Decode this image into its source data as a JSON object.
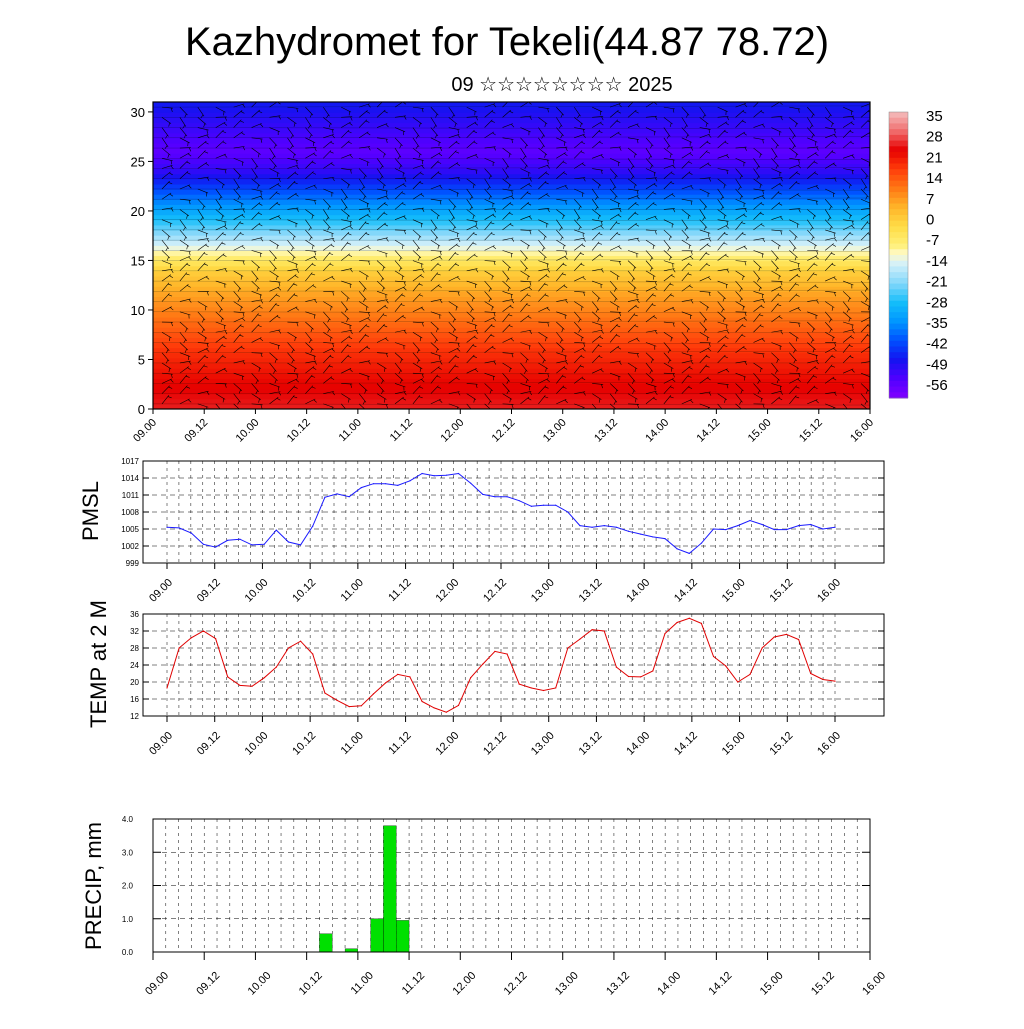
{
  "title": "Kazhydromet for Tekeli(44.87 78.72)",
  "subtitle": "09 ☆☆☆☆☆☆☆☆ 2025",
  "time_ticks": [
    "09.00",
    "09.12",
    "10.00",
    "10.12",
    "11.00",
    "11.12",
    "12.00",
    "12.12",
    "13.00",
    "13.12",
    "14.00",
    "14.12",
    "15.00",
    "15.12",
    "16.00"
  ],
  "colors": {
    "pmsl_line": "#1a1aff",
    "temp_line": "#e00000",
    "precip_bar": "#00e000",
    "frame": "#000000"
  },
  "chart_data": [
    {
      "type": "heatmap",
      "name_hint": "vertical cross-section",
      "x_ticks": [
        "09.00",
        "09.12",
        "10.00",
        "10.12",
        "11.00",
        "11.12",
        "12.00",
        "12.12",
        "13.00",
        "13.12",
        "14.00",
        "14.12",
        "15.00",
        "15.12",
        "16.00"
      ],
      "y_ticks": [
        0,
        5,
        10,
        15,
        20,
        25,
        30
      ],
      "ylim": [
        0,
        31
      ],
      "colorbar_labels": [
        "35",
        "28",
        "21",
        "14",
        "7",
        "0",
        "-7",
        "-14",
        "-21",
        "-28",
        "-35",
        "-42",
        "-49",
        "-56"
      ],
      "colorbar_range": [
        -63,
        42
      ],
      "levels_y": [
        0,
        3,
        6,
        9,
        12,
        14,
        16,
        18,
        20,
        22,
        24,
        26,
        28,
        31
      ],
      "values_by_level": [
        30,
        27,
        22,
        15,
        8,
        2,
        -10,
        -22,
        -32,
        -42,
        -52,
        -58,
        -54,
        -48
      ],
      "has_wind_barbs": true
    },
    {
      "type": "line",
      "ylabel": "PMSL",
      "x_ticks": [
        "09.00",
        "09.12",
        "10.00",
        "10.12",
        "11.00",
        "11.12",
        "12.00",
        "12.12",
        "13.00",
        "13.12",
        "14.00",
        "14.12",
        "15.00",
        "15.12",
        "16.00"
      ],
      "y_ticks": [
        "999",
        "1002",
        "1005",
        "1008",
        "1011",
        "1014",
        "1017"
      ],
      "ylim": [
        999,
        1017
      ],
      "x_step_hours": 3,
      "values": [
        1005.3,
        1005.2,
        1004.3,
        1002.3,
        1001.8,
        1003.0,
        1003.2,
        1002.2,
        1002.3,
        1004.8,
        1002.7,
        1002.2,
        1005.5,
        1010.6,
        1011.2,
        1010.7,
        1012.3,
        1013.0,
        1013.0,
        1012.7,
        1013.5,
        1014.8,
        1014.4,
        1014.5,
        1014.8,
        1013.1,
        1011.1,
        1010.7,
        1010.7,
        1010.0,
        1009.0,
        1009.2,
        1009.2,
        1008.0,
        1005.6,
        1005.3,
        1005.6,
        1005.3,
        1004.6,
        1004.1,
        1003.6,
        1003.3,
        1001.5,
        1000.7,
        1002.5,
        1005.0,
        1004.9,
        1005.6,
        1006.5,
        1005.8,
        1004.9,
        1004.9,
        1005.6,
        1005.8,
        1005.0,
        1005.3
      ]
    },
    {
      "type": "line",
      "ylabel": "TEMP at 2 M",
      "x_ticks": [
        "09.00",
        "09.12",
        "10.00",
        "10.12",
        "11.00",
        "11.12",
        "12.00",
        "12.12",
        "13.00",
        "13.12",
        "14.00",
        "14.12",
        "15.00",
        "15.12",
        "16.00"
      ],
      "y_ticks": [
        "12",
        "16",
        "20",
        "24",
        "28",
        "32",
        "36"
      ],
      "ylim": [
        12,
        36
      ],
      "x_step_hours": 3,
      "values": [
        18.6,
        28.0,
        30.4,
        32.0,
        30.2,
        21.2,
        19.2,
        19.0,
        21.0,
        23.5,
        28.0,
        29.6,
        26.6,
        17.4,
        15.7,
        14.2,
        14.4,
        17.2,
        19.8,
        21.8,
        21.2,
        15.4,
        13.9,
        12.9,
        14.5,
        21.0,
        24.2,
        27.2,
        26.6,
        19.5,
        18.6,
        18.0,
        18.6,
        28.0,
        30.1,
        32.3,
        32.0,
        23.5,
        21.3,
        21.2,
        22.6,
        31.4,
        34.0,
        35.0,
        33.8,
        26.0,
        23.8,
        20.0,
        21.8,
        28.0,
        30.6,
        31.2,
        30.0,
        22.0,
        20.6,
        20.2
      ]
    },
    {
      "type": "bar",
      "ylabel": "PRECIP, mm",
      "x_ticks": [
        "09.00",
        "09.12",
        "10.00",
        "10.12",
        "11.00",
        "11.12",
        "12.00",
        "12.12",
        "13.00",
        "13.12",
        "14.00",
        "14.12",
        "15.00",
        "15.12",
        "16.00"
      ],
      "y_ticks": [
        "0.0",
        "1.0",
        "2.0",
        "3.0",
        "4.0"
      ],
      "ylim": [
        0,
        4
      ],
      "x_step_hours": 3,
      "values": [
        0,
        0,
        0,
        0,
        0,
        0,
        0,
        0,
        0,
        0,
        0,
        0,
        0,
        0.55,
        0,
        0.1,
        0,
        1.0,
        3.8,
        0.95,
        0,
        0,
        0,
        0,
        0,
        0,
        0,
        0,
        0,
        0,
        0,
        0,
        0,
        0,
        0,
        0,
        0,
        0,
        0,
        0,
        0,
        0,
        0,
        0,
        0,
        0,
        0,
        0,
        0,
        0,
        0,
        0,
        0,
        0,
        0,
        0
      ]
    }
  ]
}
